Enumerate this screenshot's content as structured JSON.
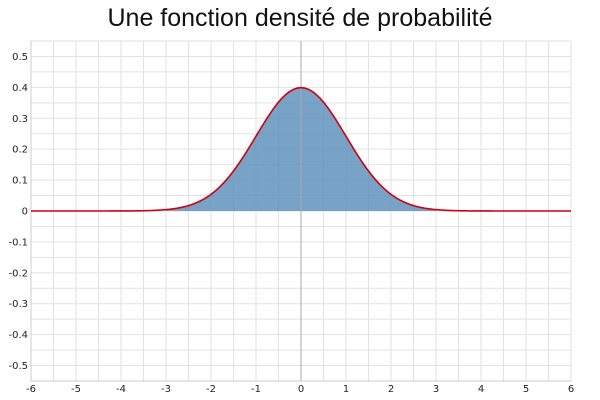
{
  "chart_data": {
    "type": "area",
    "title": "Une fonction densité de probabilité",
    "function": "standard normal density",
    "mean": 0,
    "std": 1,
    "xlim": [
      -6,
      6
    ],
    "ylim": [
      -0.55,
      0.55
    ],
    "x_ticks": [
      -6,
      -5,
      -4,
      -3,
      -2,
      -1,
      0,
      1,
      2,
      3,
      4,
      5,
      6
    ],
    "x_tick_labels": [
      "-6",
      "-5",
      "-4",
      "-3",
      "-2",
      "-1",
      "0",
      "1",
      "2",
      "3",
      "4",
      "5",
      "6"
    ],
    "y_ticks": [
      0.5,
      0.4,
      0.3,
      0.2,
      0.1,
      0,
      -0.1,
      -0.2,
      -0.3,
      -0.4,
      -0.5
    ],
    "y_tick_labels": [
      "0.5",
      "0.4",
      "0.3",
      "0.2",
      "0.1",
      "0",
      "-0.1",
      "-0.2",
      "-0.3",
      "-0.4",
      "-0.5"
    ],
    "shaded_interval": [
      -3,
      3
    ],
    "grid": true,
    "colors": {
      "curve": "#cc0011",
      "fill": "#5b8fba",
      "grid": "#e2e2e2",
      "axis": "#aaaaaa",
      "background": "#ffffff"
    }
  }
}
